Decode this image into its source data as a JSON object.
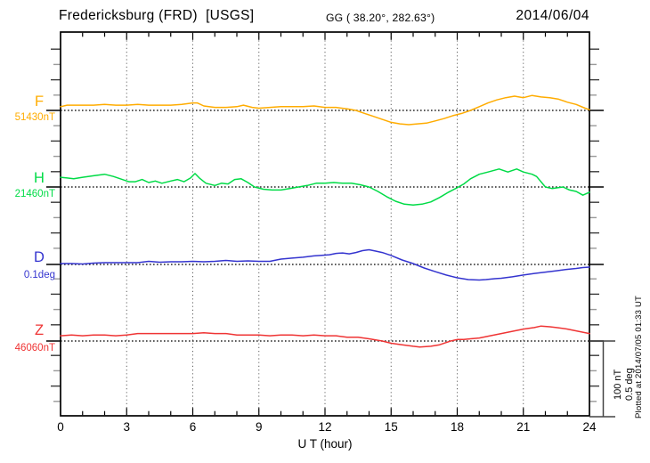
{
  "header": {
    "station": "Fredericksburg (FRD)  [USGS]",
    "coords": "GG ( 38.20°, 282.63°)",
    "date": "2014/06/04"
  },
  "x_axis": {
    "label": "U T (hour)",
    "ticks": [
      "0",
      "3",
      "6",
      "9",
      "12",
      "15",
      "18",
      "21",
      "24"
    ]
  },
  "scale_bar": {
    "nt_label": "100 nT",
    "deg_label": "0.5 deg"
  },
  "footer_note": "Plotted at 2014/07/05 01:33 UT",
  "chart_data": {
    "type": "line",
    "title": "Fredericksburg (FRD) [USGS] magnetogram 2014/06/04",
    "xlabel": "U T (hour)",
    "x_range": [
      0,
      24
    ],
    "x_major_tick": 3,
    "x_minor_tick": 1,
    "grid": "vertical-dotted-every-3h, dotted-baseline-per-trace",
    "scale_bar": {
      "nT": 100,
      "deg": 0.5
    },
    "series": [
      {
        "name": "F",
        "unit": "nT",
        "base": 51430,
        "base_label": "51430nT",
        "color": "#FFAC00",
        "points": [
          [
            0,
            51435
          ],
          [
            0.3,
            51437
          ],
          [
            1,
            51437
          ],
          [
            1.5,
            51437
          ],
          [
            2,
            51438
          ],
          [
            2.5,
            51437
          ],
          [
            3,
            51437
          ],
          [
            3.5,
            51438
          ],
          [
            4,
            51437
          ],
          [
            4.5,
            51437
          ],
          [
            5,
            51437
          ],
          [
            5.5,
            51438
          ],
          [
            6,
            51440
          ],
          [
            6.2,
            51440
          ],
          [
            6.5,
            51436
          ],
          [
            7,
            51434
          ],
          [
            7.5,
            51434
          ],
          [
            8,
            51435
          ],
          [
            8.3,
            51437
          ],
          [
            8.7,
            51434
          ],
          [
            9,
            51433
          ],
          [
            9.5,
            51434
          ],
          [
            10,
            51435
          ],
          [
            10.5,
            51435
          ],
          [
            11,
            51435
          ],
          [
            11.5,
            51436
          ],
          [
            12,
            51434
          ],
          [
            12.5,
            51434
          ],
          [
            13,
            51432
          ],
          [
            13.4,
            51430
          ],
          [
            13.8,
            51426
          ],
          [
            14.2,
            51422
          ],
          [
            14.6,
            51418
          ],
          [
            15,
            51414
          ],
          [
            15.4,
            51412
          ],
          [
            15.8,
            51411
          ],
          [
            16.2,
            51412
          ],
          [
            16.6,
            51413
          ],
          [
            17,
            51416
          ],
          [
            17.4,
            51419
          ],
          [
            17.8,
            51423
          ],
          [
            18.2,
            51426
          ],
          [
            18.6,
            51430
          ],
          [
            19,
            51435
          ],
          [
            19.4,
            51440
          ],
          [
            19.8,
            51444
          ],
          [
            20.2,
            51447
          ],
          [
            20.6,
            51449
          ],
          [
            21,
            51447
          ],
          [
            21.4,
            51450
          ],
          [
            21.8,
            51448
          ],
          [
            22.2,
            51447
          ],
          [
            22.6,
            51445
          ],
          [
            23,
            51441
          ],
          [
            23.4,
            51438
          ],
          [
            23.8,
            51433
          ],
          [
            24,
            51431
          ]
        ]
      },
      {
        "name": "H",
        "unit": "nT",
        "base": 21460,
        "base_label": "21460nT",
        "color": "#00DB46",
        "points": [
          [
            0,
            21473
          ],
          [
            0.3,
            21472
          ],
          [
            0.6,
            21471
          ],
          [
            1,
            21473
          ],
          [
            1.5,
            21475
          ],
          [
            2,
            21477
          ],
          [
            2.4,
            21474
          ],
          [
            2.8,
            21470
          ],
          [
            3.1,
            21467
          ],
          [
            3.4,
            21467
          ],
          [
            3.7,
            21470
          ],
          [
            4,
            21466
          ],
          [
            4.3,
            21468
          ],
          [
            4.6,
            21465
          ],
          [
            5,
            21468
          ],
          [
            5.3,
            21470
          ],
          [
            5.6,
            21467
          ],
          [
            5.9,
            21472
          ],
          [
            6.1,
            21478
          ],
          [
            6.3,
            21472
          ],
          [
            6.6,
            21465
          ],
          [
            7,
            21462
          ],
          [
            7.3,
            21465
          ],
          [
            7.6,
            21464
          ],
          [
            7.9,
            21470
          ],
          [
            8.2,
            21471
          ],
          [
            8.5,
            21466
          ],
          [
            8.8,
            21460
          ],
          [
            9.2,
            21457
          ],
          [
            9.6,
            21456
          ],
          [
            10,
            21456
          ],
          [
            10.4,
            21458
          ],
          [
            10.8,
            21460
          ],
          [
            11.2,
            21462
          ],
          [
            11.6,
            21465
          ],
          [
            12,
            21465
          ],
          [
            12.4,
            21466
          ],
          [
            12.8,
            21465
          ],
          [
            13.2,
            21465
          ],
          [
            13.6,
            21463
          ],
          [
            14,
            21460
          ],
          [
            14.4,
            21454
          ],
          [
            14.8,
            21447
          ],
          [
            15.2,
            21441
          ],
          [
            15.6,
            21437
          ],
          [
            16,
            21436
          ],
          [
            16.4,
            21437
          ],
          [
            16.8,
            21440
          ],
          [
            17.2,
            21446
          ],
          [
            17.6,
            21453
          ],
          [
            18,
            21459
          ],
          [
            18.3,
            21464
          ],
          [
            18.6,
            21471
          ],
          [
            19,
            21477
          ],
          [
            19.4,
            21480
          ],
          [
            19.9,
            21484
          ],
          [
            20.3,
            21480
          ],
          [
            20.7,
            21484
          ],
          [
            21,
            21480
          ],
          [
            21.4,
            21477
          ],
          [
            21.6,
            21474
          ],
          [
            22,
            21460
          ],
          [
            22.3,
            21458
          ],
          [
            22.8,
            21460
          ],
          [
            23.1,
            21456
          ],
          [
            23.4,
            21454
          ],
          [
            23.7,
            21449
          ],
          [
            24,
            21453
          ]
        ]
      },
      {
        "name": "D",
        "unit": "deg",
        "base": 0.1,
        "base_label": "0.1deg",
        "color": "#3434CF",
        "points": [
          [
            0,
            0.106
          ],
          [
            0.5,
            0.106
          ],
          [
            1,
            0.103
          ],
          [
            1.5,
            0.109
          ],
          [
            2,
            0.112
          ],
          [
            2.5,
            0.112
          ],
          [
            3,
            0.112
          ],
          [
            3.5,
            0.112
          ],
          [
            4,
            0.121
          ],
          [
            4.5,
            0.115
          ],
          [
            5,
            0.118
          ],
          [
            5.5,
            0.118
          ],
          [
            6,
            0.121
          ],
          [
            6.5,
            0.118
          ],
          [
            7,
            0.121
          ],
          [
            7.5,
            0.127
          ],
          [
            8,
            0.121
          ],
          [
            8.5,
            0.124
          ],
          [
            9,
            0.121
          ],
          [
            9.5,
            0.121
          ],
          [
            10,
            0.136
          ],
          [
            10.5,
            0.142
          ],
          [
            11,
            0.148
          ],
          [
            11.5,
            0.157
          ],
          [
            11.8,
            0.16
          ],
          [
            12.2,
            0.165
          ],
          [
            12.5,
            0.174
          ],
          [
            12.8,
            0.177
          ],
          [
            13.1,
            0.171
          ],
          [
            13.4,
            0.18
          ],
          [
            13.7,
            0.192
          ],
          [
            14,
            0.198
          ],
          [
            14.3,
            0.189
          ],
          [
            14.6,
            0.18
          ],
          [
            15,
            0.16
          ],
          [
            15.5,
            0.13
          ],
          [
            16,
            0.106
          ],
          [
            16.5,
            0.076
          ],
          [
            17,
            0.052
          ],
          [
            17.5,
            0.029
          ],
          [
            18,
            0.011
          ],
          [
            18.5,
            -0.001
          ],
          [
            19,
            -0.004
          ],
          [
            19.3,
            -0.001
          ],
          [
            19.7,
            0.005
          ],
          [
            20,
            0.008
          ],
          [
            20.5,
            0.017
          ],
          [
            21,
            0.029
          ],
          [
            21.5,
            0.04
          ],
          [
            22,
            0.049
          ],
          [
            22.5,
            0.058
          ],
          [
            23,
            0.067
          ],
          [
            23.4,
            0.073
          ],
          [
            23.7,
            0.079
          ],
          [
            24,
            0.082
          ]
        ]
      },
      {
        "name": "Z",
        "unit": "nT",
        "base": 46060,
        "base_label": "46060nT",
        "color": "#EF3434",
        "points": [
          [
            0,
            46067
          ],
          [
            0.5,
            46068
          ],
          [
            1,
            46067
          ],
          [
            1.5,
            46068
          ],
          [
            2,
            46068
          ],
          [
            2.5,
            46067
          ],
          [
            3,
            46068
          ],
          [
            3.5,
            46070
          ],
          [
            4,
            46070
          ],
          [
            4.5,
            46070
          ],
          [
            5,
            46070
          ],
          [
            5.5,
            46070
          ],
          [
            6,
            46070
          ],
          [
            6.5,
            46071
          ],
          [
            7,
            46070
          ],
          [
            7.5,
            46070
          ],
          [
            8,
            46068
          ],
          [
            8.5,
            46068
          ],
          [
            9,
            46068
          ],
          [
            9.5,
            46067
          ],
          [
            10,
            46068
          ],
          [
            10.5,
            46068
          ],
          [
            11,
            46067
          ],
          [
            11.5,
            46068
          ],
          [
            12,
            46067
          ],
          [
            12.5,
            46067
          ],
          [
            13,
            46065
          ],
          [
            13.5,
            46065
          ],
          [
            14,
            46063
          ],
          [
            14.6,
            46060
          ],
          [
            15,
            46057
          ],
          [
            15.5,
            46055
          ],
          [
            16,
            46053
          ],
          [
            16.3,
            46052
          ],
          [
            16.8,
            46053
          ],
          [
            17.2,
            46055
          ],
          [
            17.5,
            46058
          ],
          [
            17.7,
            46060
          ],
          [
            18,
            46062
          ],
          [
            18.3,
            46062
          ],
          [
            18.6,
            46063
          ],
          [
            19,
            46064
          ],
          [
            19.5,
            46067
          ],
          [
            20,
            46070
          ],
          [
            20.5,
            46073
          ],
          [
            21,
            46076
          ],
          [
            21.5,
            46078
          ],
          [
            21.8,
            46080
          ],
          [
            22.2,
            46079
          ],
          [
            22.5,
            46078
          ],
          [
            23,
            46076
          ],
          [
            23.5,
            46073
          ],
          [
            24,
            46070
          ]
        ]
      }
    ]
  }
}
